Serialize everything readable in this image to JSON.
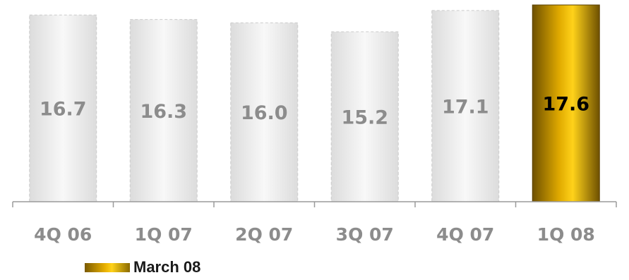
{
  "chart_data": {
    "type": "bar",
    "categories": [
      "4Q 06",
      "1Q 07",
      "2Q 07",
      "3Q 07",
      "4Q 07",
      "1Q 08"
    ],
    "values": [
      16.7,
      16.3,
      16.0,
      15.2,
      17.1,
      17.6
    ],
    "value_labels": [
      "16.7",
      "16.3",
      "16.0",
      "15.2",
      "17.1",
      "17.6"
    ],
    "highlight_index": 5,
    "title": "",
    "xlabel": "",
    "ylabel": "",
    "ylim": [
      0,
      17.6
    ],
    "grid": false,
    "legend_position": "bottom-left",
    "colors": {
      "bar_fill": "#f1f1f1",
      "bar_edge": "#cccccc",
      "highlight_light": "#ffd21a",
      "highlight_dark": "#6e5000",
      "value_label": "#8c8c8c",
      "highlight_label": "#000000",
      "tick_label": "#8c8c8c",
      "axis": "#9a9a9a"
    }
  },
  "legend": {
    "label": "March 08"
  }
}
